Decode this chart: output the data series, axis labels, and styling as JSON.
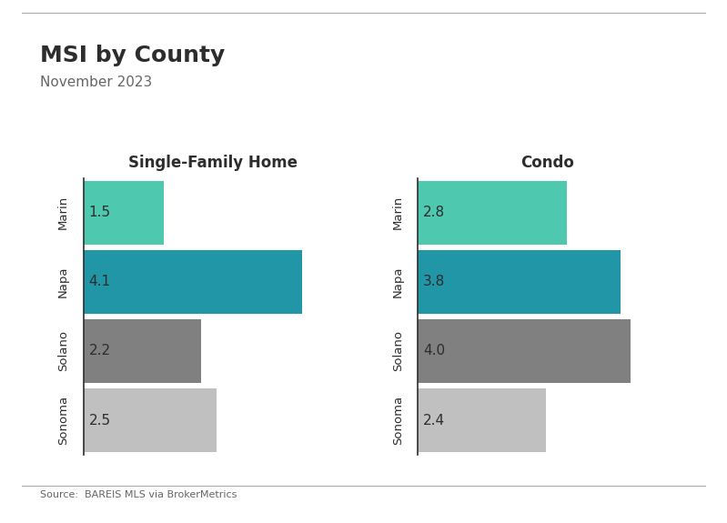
{
  "title": "MSI by County",
  "subtitle": "November 2023",
  "source": "Source:  BAREIS MLS via BrokerMetrics",
  "categories": [
    "Marin",
    "Napa",
    "Solano",
    "Sonoma"
  ],
  "sfh_values": [
    1.5,
    4.1,
    2.2,
    2.5
  ],
  "condo_values": [
    2.8,
    3.8,
    4.0,
    2.4
  ],
  "sfh_title": "Single-Family Home",
  "condo_title": "Condo",
  "colors": {
    "Marin": "#4ec9b0",
    "Napa": "#2196a6",
    "Solano": "#808080",
    "Sonoma": "#c0c0c0"
  },
  "background_color": "#ffffff",
  "xlim_sfh": [
    0,
    4.85
  ],
  "xlim_condo": [
    0,
    4.85
  ],
  "title_fontsize": 18,
  "subtitle_fontsize": 11,
  "bar_label_fontsize": 11,
  "axis_title_fontsize": 12,
  "source_fontsize": 8,
  "title_color": "#2d2d2d",
  "subtitle_color": "#666666",
  "label_color": "#2d2d2d",
  "spine_color": "#2d2d2d"
}
